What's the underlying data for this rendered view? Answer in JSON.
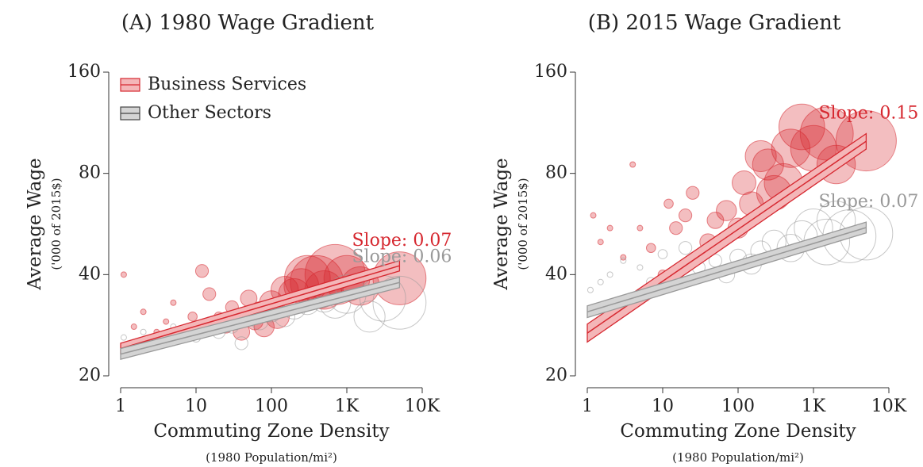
{
  "chart_data": [
    {
      "type": "scatter",
      "title": "(A) 1980 Wage Gradient",
      "xlabel": "Commuting Zone Density",
      "xlabel_note": "(1980 Population/mi²)",
      "ylabel": "Average Wage",
      "ylabel_note": "('000 of 2015$)",
      "xscale": "log",
      "yscale": "log",
      "xlim": [
        1,
        10000
      ],
      "ylim": [
        20,
        160
      ],
      "xticks": [
        1,
        10,
        100,
        {
          "value": 1000,
          "label": "1K"
        },
        {
          "value": 10000,
          "label": "10K"
        }
      ],
      "yticks": [
        20,
        40,
        80,
        160
      ],
      "legend": "upper left",
      "series": [
        {
          "name": "Business Services",
          "color": "#d62830",
          "x": [
            1.1,
            1.5,
            2,
            3,
            4,
            5,
            7,
            9,
            12,
            15,
            20,
            25,
            30,
            40,
            50,
            60,
            70,
            80,
            100,
            120,
            150,
            200,
            250,
            300,
            400,
            500,
            700,
            1000,
            1500,
            5000
          ],
          "values": [
            40,
            28,
            31,
            27,
            29,
            33,
            26,
            30,
            41,
            35,
            30,
            28,
            32,
            27,
            34,
            29,
            31,
            28,
            33,
            30,
            36,
            35,
            37,
            39,
            38,
            36,
            40,
            39,
            37,
            39
          ],
          "sizes": [
            1,
            1,
            1,
            1,
            1,
            1,
            2,
            2,
            3,
            3,
            2,
            3,
            3,
            4,
            4,
            4,
            5,
            5,
            6,
            6,
            7,
            8,
            9,
            12,
            14,
            10,
            16,
            12,
            10,
            14
          ],
          "fit": {
            "x": [
              1,
              5000
            ],
            "values": [
              24.1,
              42.5
            ],
            "lower": [
              23.3,
              41.0
            ],
            "upper": [
              25.0,
              44.0
            ]
          },
          "slope_label": "Slope: 0.07"
        },
        {
          "name": "Other Sectors",
          "color": "#999999",
          "x": [
            1.1,
            1.5,
            2,
            3,
            5,
            7,
            10,
            15,
            20,
            30,
            40,
            50,
            70,
            100,
            150,
            200,
            300,
            500,
            700,
            1000,
            2000,
            3000,
            5000
          ],
          "values": [
            26,
            24,
            27,
            25,
            28,
            27,
            26,
            29,
            27,
            28,
            25,
            30,
            29,
            31,
            30,
            32,
            33,
            34,
            33,
            35,
            30,
            34,
            33
          ],
          "sizes": [
            1,
            1,
            1,
            1,
            1,
            2,
            2,
            2,
            3,
            3,
            3,
            4,
            4,
            5,
            5,
            6,
            6,
            7,
            8,
            10,
            8,
            12,
            14
          ],
          "fit": {
            "x": [
              1,
              5000
            ],
            "values": [
              23.2,
              37.9
            ],
            "lower": [
              22.4,
              36.6
            ],
            "upper": [
              24.1,
              39.3
            ]
          },
          "slope_label": "Slope: 0.06"
        }
      ]
    },
    {
      "type": "scatter",
      "title": "(B) 2015 Wage Gradient",
      "xlabel": "Commuting Zone Density",
      "xlabel_note": "(1980 Population/mi²)",
      "ylabel": "Average Wage",
      "ylabel_note": "('000 of 2015$)",
      "xscale": "log",
      "yscale": "log",
      "xlim": [
        1,
        10000
      ],
      "ylim": [
        20,
        160
      ],
      "xticks": [
        1,
        10,
        100,
        {
          "value": 1000,
          "label": "1K"
        },
        {
          "value": 10000,
          "label": "10K"
        }
      ],
      "yticks": [
        20,
        40,
        80,
        160
      ],
      "series": [
        {
          "color": "#d62830",
          "x": [
            1.2,
            1.5,
            2,
            3,
            4,
            5,
            7,
            10,
            12,
            15,
            20,
            25,
            30,
            40,
            50,
            70,
            100,
            120,
            150,
            200,
            250,
            300,
            400,
            500,
            700,
            1000,
            1500,
            2000,
            5000
          ],
          "values": [
            60,
            50,
            55,
            45,
            85,
            55,
            48,
            40,
            65,
            55,
            60,
            70,
            45,
            50,
            58,
            62,
            55,
            75,
            65,
            90,
            85,
            70,
            75,
            95,
            110,
            95,
            105,
            85,
            100
          ],
          "sizes": [
            1,
            1,
            1,
            1,
            1,
            1,
            2,
            2,
            2,
            3,
            3,
            3,
            3,
            4,
            4,
            5,
            5,
            6,
            6,
            8,
            8,
            9,
            10,
            10,
            12,
            12,
            14,
            10,
            16
          ],
          "fit": {
            "x": [
              1,
              5000
            ],
            "values": [
              26.8,
              99.7
            ],
            "lower": [
              25.2,
              94.5
            ],
            "upper": [
              28.5,
              105.0
            ]
          },
          "slope_label": "Slope: 0.15"
        },
        {
          "color": "#999999",
          "x": [
            1.1,
            1.5,
            2,
            3,
            5,
            7,
            10,
            15,
            20,
            30,
            50,
            70,
            100,
            150,
            200,
            300,
            500,
            700,
            1000,
            1500,
            2000,
            3000,
            5000
          ],
          "values": [
            36,
            38,
            40,
            44,
            42,
            38,
            46,
            40,
            48,
            42,
            44,
            40,
            45,
            43,
            47,
            50,
            48,
            52,
            55,
            50,
            58,
            52,
            53
          ],
          "sizes": [
            1,
            1,
            1,
            1,
            1,
            2,
            2,
            2,
            3,
            3,
            3,
            4,
            4,
            5,
            5,
            6,
            7,
            8,
            10,
            12,
            10,
            14,
            14
          ],
          "fit": {
            "x": [
              1,
              5000
            ],
            "values": [
              31.0,
              55.2
            ],
            "lower": [
              29.8,
              53.2
            ],
            "upper": [
              32.3,
              57.3
            ]
          },
          "slope_label": "Slope: 0.07"
        }
      ]
    }
  ]
}
